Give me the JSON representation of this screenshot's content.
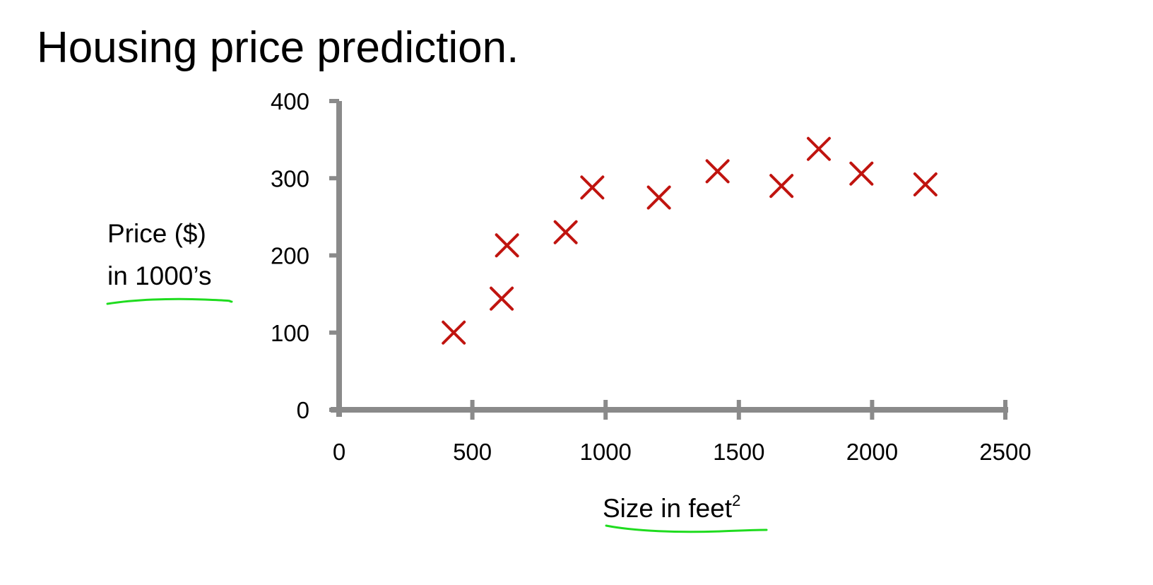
{
  "slide": {
    "title": "Housing price prediction."
  },
  "chart_data": {
    "type": "scatter",
    "title": "Housing price prediction.",
    "xlabel": "Size in feet",
    "xlabel_superscript": "2",
    "ylabel_lines": [
      "Price ($)",
      "in 1000’s"
    ],
    "xlim": [
      0,
      2500
    ],
    "ylim": [
      0,
      400
    ],
    "xticks": [
      0,
      500,
      1000,
      1500,
      2000,
      2500
    ],
    "yticks": [
      0,
      100,
      200,
      300,
      400
    ],
    "grid": false,
    "legend": "none",
    "series": [
      {
        "marker": "x",
        "color": "#c0140f",
        "points": [
          {
            "x": 430,
            "y": 100
          },
          {
            "x": 610,
            "y": 144
          },
          {
            "x": 630,
            "y": 213
          },
          {
            "x": 850,
            "y": 230
          },
          {
            "x": 950,
            "y": 288
          },
          {
            "x": 1200,
            "y": 275
          },
          {
            "x": 1420,
            "y": 309
          },
          {
            "x": 1660,
            "y": 290
          },
          {
            "x": 1800,
            "y": 338
          },
          {
            "x": 1960,
            "y": 306
          },
          {
            "x": 2200,
            "y": 292
          }
        ]
      }
    ],
    "axis_color": "#8a8a8a",
    "annotation_color": "#1fdc1f"
  }
}
